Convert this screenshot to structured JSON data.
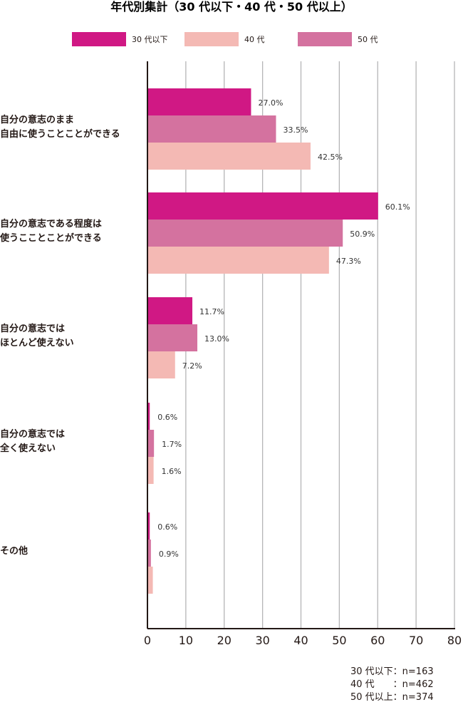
{
  "chart_data": {
    "type": "bar",
    "orientation": "horizontal",
    "title": "年代別集計（30 代以下・40 代・50 代以上）",
    "categories": [
      [
        "自分の意志のまま",
        "自由に使うことことができる"
      ],
      [
        "自分の意志である程度は",
        "使うこことことができる"
      ],
      [
        "自分の意志では",
        "ほとんど使えない"
      ],
      [
        "自分の意志では",
        "全く使えない"
      ],
      [
        "その他"
      ]
    ],
    "series": [
      {
        "name": "30 代以下",
        "color": "#d01884",
        "values": [
          27.0,
          60.1,
          11.7,
          0.6,
          0.6
        ],
        "labels": [
          "27.0%",
          "60.1%",
          "11.7%",
          "0.6%",
          "0.6%"
        ]
      },
      {
        "name": "50 代",
        "color": "#d4729f",
        "values": [
          33.5,
          50.9,
          13.0,
          1.7,
          0.9
        ],
        "labels": [
          "33.5%",
          "50.9%",
          "13.0%",
          "1.7%",
          "0.9%"
        ]
      },
      {
        "name": "40 代",
        "color": "#f4b9b4",
        "values": [
          42.5,
          47.3,
          7.2,
          1.6,
          1.4
        ],
        "labels": [
          "42.5%",
          "47.3%",
          "7.2%",
          "1.6%",
          ""
        ]
      }
    ],
    "legend": [
      {
        "name": "30 代以下",
        "color": "#d01884"
      },
      {
        "name": "40 代",
        "color": "#f4b9b4"
      },
      {
        "name": "50 代",
        "color": "#d4729f"
      }
    ],
    "legend_position": "top",
    "xlim": [
      0,
      80
    ],
    "xticks": [
      "0",
      "10",
      "20",
      "30",
      "40",
      "50",
      "60",
      "70",
      "80"
    ],
    "grid": true,
    "notes": [
      "30 代以下：n=163",
      "40 代　　：n=462",
      "50 代以上：n=374"
    ]
  }
}
